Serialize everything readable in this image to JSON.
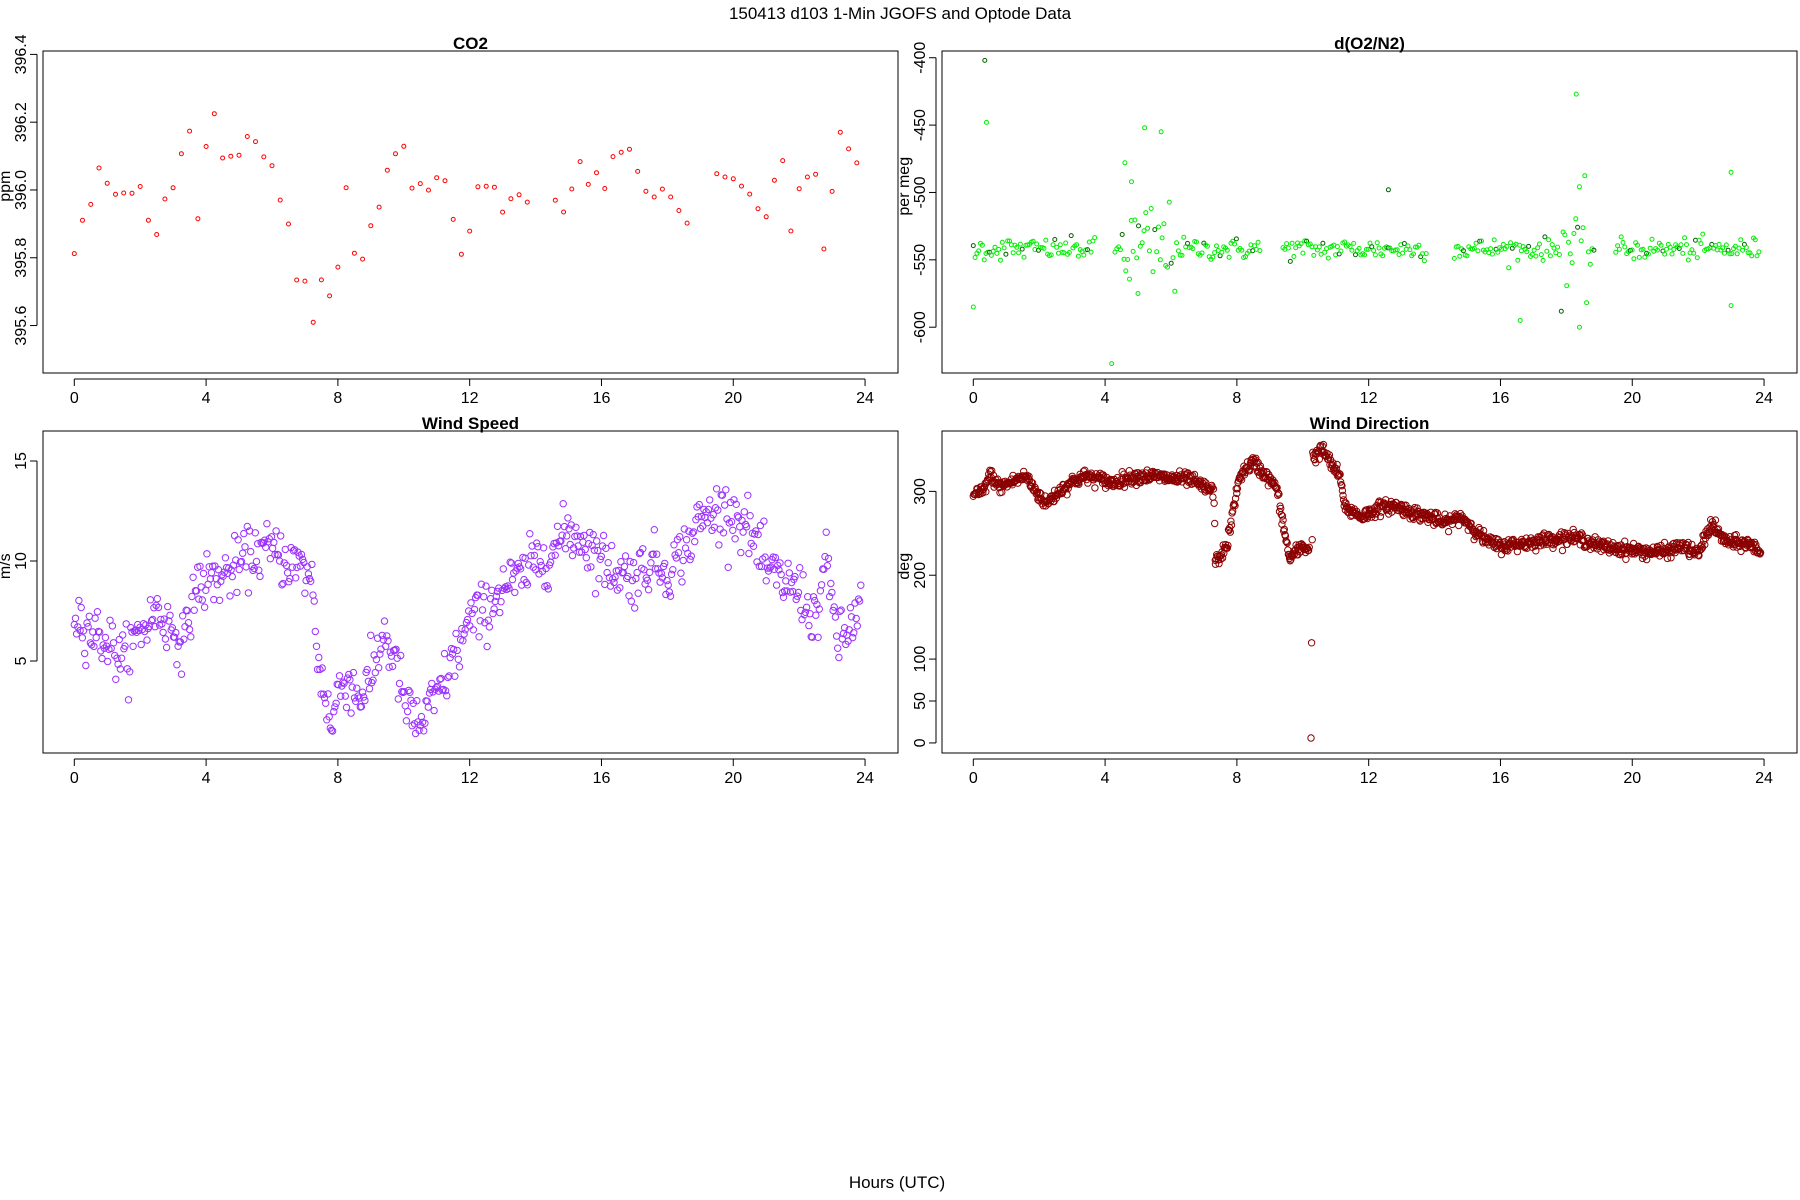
{
  "figure": {
    "title": "150413   d103   1-Min  JGOFS and Optode Data",
    "xlabel": "Hours (UTC)"
  },
  "chart_data": [
    {
      "type": "scatter",
      "title": "CO2",
      "ylabel": "ppm",
      "xlabel": "",
      "color": "#ff0000",
      "x_ticks": [
        0,
        4,
        8,
        12,
        16,
        20,
        24
      ],
      "y_ticks": [
        395.6,
        395.8,
        396.0,
        396.2,
        396.4
      ],
      "xlim": [
        -0.95,
        25.0
      ],
      "ylim": [
        395.46,
        396.41
      ],
      "grid": false,
      "legend": "none",
      "marker": "small open circle",
      "series": [
        {
          "x_start": 0.0,
          "x_step": 0.25,
          "segments": [
            [
              0.0,
              13.75
            ],
            [
              14.6,
              18.75
            ],
            [
              19.5,
              23.85
            ]
          ],
          "keypoints": [
            [
              0.0,
              395.82
            ],
            [
              0.3,
              395.9
            ],
            [
              0.45,
              395.94
            ],
            [
              0.65,
              396.05
            ],
            [
              0.8,
              396.02
            ],
            [
              1.2,
              396.0
            ],
            [
              1.6,
              395.98
            ],
            [
              2.0,
              396.0
            ],
            [
              2.2,
              395.9
            ],
            [
              2.5,
              395.92
            ],
            [
              2.8,
              396.0
            ],
            [
              3.1,
              396.05
            ],
            [
              3.4,
              396.15
            ],
            [
              3.55,
              396.23
            ],
            [
              3.7,
              395.86
            ],
            [
              4.2,
              396.34
            ],
            [
              4.35,
              396.1
            ],
            [
              4.7,
              396.1
            ],
            [
              5.0,
              396.08
            ],
            [
              5.3,
              396.18
            ],
            [
              5.6,
              396.1
            ],
            [
              6.0,
              396.05
            ],
            [
              6.4,
              395.95
            ],
            [
              6.7,
              395.8
            ],
            [
              6.9,
              395.65
            ],
            [
              7.1,
              395.75
            ],
            [
              7.3,
              395.52
            ],
            [
              7.6,
              395.8
            ],
            [
              7.8,
              395.62
            ],
            [
              8.0,
              395.78
            ],
            [
              8.2,
              396.05
            ],
            [
              8.4,
              395.85
            ],
            [
              8.75,
              395.78
            ],
            [
              9.2,
              396.0
            ],
            [
              9.6,
              396.12
            ],
            [
              10.0,
              396.1
            ],
            [
              10.4,
              396.02
            ],
            [
              10.8,
              396.05
            ],
            [
              11.2,
              396.06
            ],
            [
              11.6,
              395.85
            ],
            [
              11.8,
              395.8
            ],
            [
              12.1,
              395.98
            ],
            [
              12.5,
              396.02
            ],
            [
              12.9,
              395.92
            ],
            [
              13.3,
              395.97
            ],
            [
              13.75,
              395.95
            ],
            [
              14.6,
              396.0
            ],
            [
              15.0,
              395.95
            ],
            [
              15.3,
              396.08
            ],
            [
              15.6,
              396.0
            ],
            [
              16.0,
              396.02
            ],
            [
              16.4,
              396.12
            ],
            [
              16.7,
              396.14
            ],
            [
              17.0,
              396.06
            ],
            [
              17.4,
              395.98
            ],
            [
              17.8,
              396.02
            ],
            [
              18.2,
              396.0
            ],
            [
              18.5,
              395.92
            ],
            [
              18.75,
              396.0
            ],
            [
              19.5,
              396.05
            ],
            [
              19.8,
              396.02
            ],
            [
              20.2,
              396.06
            ],
            [
              20.5,
              395.95
            ],
            [
              20.8,
              395.9
            ],
            [
              21.2,
              395.98
            ],
            [
              21.5,
              396.05
            ],
            [
              21.8,
              395.85
            ],
            [
              22.1,
              396.1
            ],
            [
              22.5,
              396.05
            ],
            [
              22.7,
              395.82
            ],
            [
              22.9,
              395.68
            ],
            [
              23.1,
              396.24
            ],
            [
              23.4,
              396.1
            ],
            [
              23.85,
              396.08
            ]
          ],
          "noise": 0.025
        }
      ]
    },
    {
      "type": "scatter",
      "title": "d(O2/N2)",
      "ylabel": "per meg",
      "xlabel": "",
      "color": "#00ee00",
      "dark_color": "#006400",
      "x_ticks": [
        0,
        4,
        8,
        12,
        16,
        20,
        24
      ],
      "y_ticks": [
        -600,
        -550,
        -500,
        -450,
        -400
      ],
      "xlim": [
        -0.95,
        25.0
      ],
      "ylim": [
        -634,
        -395
      ],
      "grid": false,
      "legend": "none",
      "marker": "small open circle",
      "series": [
        {
          "x_start": 0.0,
          "x_step": 0.055,
          "segments": [
            [
              0.0,
              3.7
            ],
            [
              4.3,
              8.7
            ],
            [
              9.4,
              13.75
            ],
            [
              14.6,
              18.85
            ],
            [
              19.5,
              23.85
            ]
          ],
          "baseline": -542,
          "noise": 4.0,
          "wide_noise_ranges": [
            [
              4.5,
              6.2,
              18
            ],
            [
              17.8,
              18.8,
              20
            ]
          ],
          "outliers": [
            [
              0.35,
              -402
            ],
            [
              0.4,
              -448
            ],
            [
              0.0,
              -585
            ],
            [
              4.2,
              -627
            ],
            [
              4.6,
              -478
            ],
            [
              4.8,
              -492
            ],
            [
              5.2,
              -452
            ],
            [
              5.7,
              -455
            ],
            [
              5.0,
              -575
            ],
            [
              12.6,
              -498
            ],
            [
              16.6,
              -595
            ],
            [
              18.3,
              -427
            ],
            [
              18.4,
              -600
            ],
            [
              23.0,
              -485
            ],
            [
              23.0,
              -584
            ]
          ]
        }
      ]
    },
    {
      "type": "scatter",
      "title": "Wind Speed",
      "ylabel": "m/s",
      "xlabel": "",
      "color": "#9b30ff",
      "x_ticks": [
        0,
        4,
        8,
        12,
        16,
        20,
        24
      ],
      "y_ticks": [
        5,
        10,
        15
      ],
      "xlim": [
        -0.95,
        25.0
      ],
      "ylim": [
        0.4,
        16.5
      ],
      "grid": false,
      "legend": "none",
      "marker": "open circle",
      "series": [
        {
          "x_start": 0.0,
          "x_step": 0.035,
          "segments": [
            [
              0.0,
              23.9
            ]
          ],
          "keypoints": [
            [
              0.0,
              7.5
            ],
            [
              0.5,
              6.5
            ],
            [
              1.0,
              6.0
            ],
            [
              1.5,
              5.0
            ],
            [
              2.0,
              6.5
            ],
            [
              2.5,
              7.5
            ],
            [
              3.0,
              6.5
            ],
            [
              3.4,
              6.0
            ],
            [
              3.6,
              8.5
            ],
            [
              4.0,
              9.0
            ],
            [
              4.5,
              9.2
            ],
            [
              5.0,
              9.8
            ],
            [
              5.5,
              10.5
            ],
            [
              6.0,
              10.5
            ],
            [
              6.5,
              10.0
            ],
            [
              7.0,
              9.5
            ],
            [
              7.2,
              9.2
            ],
            [
              7.4,
              5.0
            ],
            [
              7.6,
              3.5
            ],
            [
              7.8,
              1.5
            ],
            [
              8.0,
              3.5
            ],
            [
              8.3,
              4.2
            ],
            [
              8.6,
              3.2
            ],
            [
              9.0,
              4.0
            ],
            [
              9.4,
              6.5
            ],
            [
              9.8,
              4.5
            ],
            [
              10.1,
              2.5
            ],
            [
              10.5,
              1.8
            ],
            [
              11.0,
              3.2
            ],
            [
              11.5,
              5.0
            ],
            [
              12.0,
              7.0
            ],
            [
              12.5,
              7.5
            ],
            [
              13.0,
              8.8
            ],
            [
              13.5,
              9.0
            ],
            [
              14.0,
              10.0
            ],
            [
              14.5,
              10.5
            ],
            [
              15.0,
              11.5
            ],
            [
              15.5,
              11.0
            ],
            [
              16.0,
              10.0
            ],
            [
              16.5,
              9.5
            ],
            [
              17.0,
              9.2
            ],
            [
              17.5,
              10.0
            ],
            [
              18.0,
              9.5
            ],
            [
              18.5,
              10.5
            ],
            [
              19.0,
              12.0
            ],
            [
              19.5,
              12.5
            ],
            [
              20.0,
              12.5
            ],
            [
              20.5,
              11.5
            ],
            [
              21.0,
              9.5
            ],
            [
              21.5,
              9.0
            ],
            [
              22.0,
              8.5
            ],
            [
              22.5,
              7.0
            ],
            [
              22.8,
              10.0
            ],
            [
              23.2,
              6.0
            ],
            [
              23.5,
              6.5
            ],
            [
              23.9,
              8.0
            ]
          ],
          "noise": 0.7
        }
      ]
    },
    {
      "type": "scatter",
      "title": "Wind Direction",
      "ylabel": "deg",
      "xlabel": "",
      "color": "#8b0000",
      "x_ticks": [
        0,
        4,
        8,
        12,
        16,
        20,
        24
      ],
      "y_ticks": [
        0,
        50,
        100,
        200,
        300
      ],
      "xlim": [
        -0.95,
        25.0
      ],
      "ylim": [
        -12,
        372
      ],
      "grid": false,
      "legend": "none",
      "marker": "open circle",
      "series": [
        {
          "x_start": 0.0,
          "x_step": 0.018,
          "segments": [
            [
              0.0,
              7.35
            ],
            [
              7.35,
              9.6
            ],
            [
              9.6,
              10.2
            ],
            [
              10.25,
              23.9
            ]
          ],
          "keypoints": [
            [
              0.0,
              295
            ],
            [
              0.3,
              300
            ],
            [
              0.5,
              320
            ],
            [
              0.8,
              305
            ],
            [
              1.2,
              312
            ],
            [
              1.6,
              318
            ],
            [
              1.9,
              300
            ],
            [
              2.2,
              285
            ],
            [
              2.6,
              300
            ],
            [
              3.0,
              312
            ],
            [
              3.4,
              318
            ],
            [
              3.8,
              315
            ],
            [
              4.2,
              310
            ],
            [
              4.6,
              315
            ],
            [
              5.0,
              318
            ],
            [
              5.5,
              318
            ],
            [
              6.0,
              315
            ],
            [
              6.5,
              315
            ],
            [
              7.0,
              305
            ],
            [
              7.3,
              300
            ],
            [
              7.35,
              215
            ],
            [
              7.7,
              235
            ],
            [
              7.9,
              280
            ],
            [
              8.1,
              320
            ],
            [
              8.5,
              335
            ],
            [
              8.8,
              322
            ],
            [
              9.2,
              305
            ],
            [
              9.5,
              240
            ],
            [
              9.6,
              220
            ],
            [
              10.0,
              235
            ],
            [
              10.2,
              230
            ],
            [
              10.25,
              5
            ],
            [
              10.3,
              340
            ],
            [
              10.6,
              350
            ],
            [
              10.9,
              330
            ],
            [
              11.1,
              320
            ],
            [
              11.3,
              280
            ],
            [
              11.8,
              270
            ],
            [
              12.3,
              280
            ],
            [
              12.8,
              283
            ],
            [
              13.3,
              275
            ],
            [
              13.8,
              270
            ],
            [
              14.3,
              262
            ],
            [
              14.8,
              270
            ],
            [
              15.2,
              255
            ],
            [
              15.6,
              240
            ],
            [
              16.0,
              235
            ],
            [
              16.5,
              237
            ],
            [
              17.0,
              240
            ],
            [
              17.5,
              243
            ],
            [
              18.0,
              245
            ],
            [
              18.5,
              243
            ],
            [
              19.0,
              235
            ],
            [
              19.5,
              232
            ],
            [
              20.0,
              230
            ],
            [
              20.5,
              228
            ],
            [
              21.0,
              228
            ],
            [
              21.5,
              235
            ],
            [
              22.0,
              225
            ],
            [
              22.4,
              262
            ],
            [
              22.7,
              245
            ],
            [
              23.0,
              238
            ],
            [
              23.5,
              238
            ],
            [
              23.9,
              228
            ]
          ],
          "noise": 4.0
        }
      ]
    }
  ]
}
